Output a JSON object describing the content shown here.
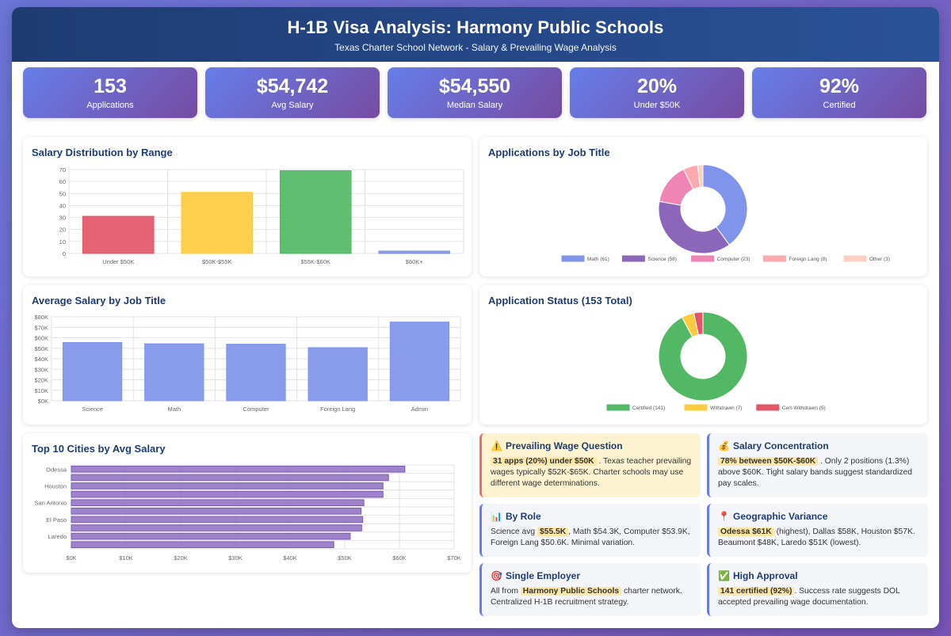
{
  "header": {
    "title": "H-1B Visa Analysis: Harmony Public Schools",
    "subtitle": "Texas Charter School Network - Salary & Prevailing Wage Analysis"
  },
  "stats": [
    {
      "value": "153",
      "label": "Applications"
    },
    {
      "value": "$54,742",
      "label": "Avg Salary"
    },
    {
      "value": "$54,550",
      "label": "Median Salary"
    },
    {
      "value": "20%",
      "label": "Under $50K"
    },
    {
      "value": "92%",
      "label": "Certified"
    }
  ],
  "colors": {
    "header_from": "#1e3c72",
    "header_to": "#2a5298",
    "stat_from": "#667eea",
    "stat_to": "#764ba2",
    "bar_blue": "#7f94ea",
    "bar_purple": "#9374c4"
  },
  "chart_data": [
    {
      "id": "salary_distribution",
      "type": "bar",
      "title": "Salary Distribution by Range",
      "categories": [
        "Under $50K",
        "$50K-$55K",
        "$55K-$60K",
        "$60K+"
      ],
      "values": [
        31,
        51,
        69,
        2
      ],
      "colors": [
        "#e25668",
        "#fecb3d",
        "#52b865",
        "#7f94ea"
      ],
      "ylim": [
        0,
        70
      ],
      "yticks": [
        "0",
        "10",
        "20",
        "30",
        "40",
        "50",
        "60",
        "70"
      ],
      "grid": true
    },
    {
      "id": "applications_by_job",
      "type": "pie",
      "title": "Applications by Job Title",
      "labels": [
        "Math (61)",
        "Science (58)",
        "Computer (23)",
        "Foreign Lang (8)",
        "Other (3)"
      ],
      "values": [
        61,
        58,
        23,
        8,
        3
      ],
      "colors": [
        "#7f94ea",
        "#8c66b9",
        "#ef85b4",
        "#fcaab0",
        "#fdd0c2"
      ],
      "legend": "bottom"
    },
    {
      "id": "avg_salary_by_job",
      "type": "bar",
      "title": "Average Salary by Job Title",
      "categories": [
        "Science",
        "Math",
        "Computer",
        "Foreign Lang",
        "Admin"
      ],
      "values": [
        55500,
        54300,
        53900,
        50600,
        75000
      ],
      "colors": [
        "#7f94ea",
        "#7f94ea",
        "#7f94ea",
        "#7f94ea",
        "#7f94ea"
      ],
      "ylim": [
        0,
        80000
      ],
      "yticks": [
        "$0K",
        "$10K",
        "$20K",
        "$30K",
        "$40K",
        "$50K",
        "$60K",
        "$70K",
        "$80K"
      ],
      "grid": true
    },
    {
      "id": "application_status",
      "type": "pie",
      "title": "Application Status (153 Total)",
      "labels": [
        "Certified (141)",
        "Withdrawn (7)",
        "Cert-Withdrawn (5)"
      ],
      "values": [
        141,
        7,
        5
      ],
      "colors": [
        "#52b865",
        "#fecb3d",
        "#e25668"
      ],
      "legend": "bottom"
    },
    {
      "id": "top_cities",
      "type": "bar",
      "orientation": "horizontal",
      "title": "Top 10 Cities by Avg Salary",
      "category_labels": [
        "Odessa",
        "",
        "Houston",
        "",
        "San Antonio",
        "",
        "El Paso",
        "",
        "Laredo",
        ""
      ],
      "values": [
        61000,
        58000,
        57000,
        57000,
        53500,
        53000,
        53300,
        53100,
        51000,
        48000
      ],
      "color": "#9374c4",
      "xlim": [
        0,
        70000
      ],
      "xticks": [
        "$0K",
        "$10K",
        "$20K",
        "$30K",
        "$40K",
        "$50K",
        "$60K",
        "$70K"
      ],
      "grid": true
    }
  ],
  "insights": [
    {
      "icon": "⚠️",
      "title": "Prevailing Wage Question",
      "highlight": "31 apps (20%) under $50K",
      "text_before": "",
      "text_after": ". Texas teacher prevailing wages typically $52K-$65K. Charter schools may use different wage determinations."
    },
    {
      "icon": "💰",
      "title": "Salary Concentration",
      "highlight": "78% between $50K-$60K",
      "text_before": "",
      "text_after": ". Only 2 positions (1.3%) above $60K. Tight salary bands suggest standardized pay scales."
    },
    {
      "icon": "📊",
      "title": "By Role",
      "highlight": "$55.5K",
      "text_before": "Science avg",
      "text_after": ", Math $54.3K, Computer $53.9K, Foreign Lang $50.6K. Minimal variation."
    },
    {
      "icon": "📍",
      "title": "Geographic Variance",
      "highlight": "Odessa $61K",
      "text_before": "",
      "text_after": "(highest), Dallas $58K, Houston $57K. Beaumont $48K, Laredo $51K (lowest)."
    },
    {
      "icon": "🎯",
      "title": "Single Employer",
      "highlight": "Harmony Public Schools",
      "text_before": "All from",
      "text_after": "charter network. Centralized H-1B recruitment strategy."
    },
    {
      "icon": "✅",
      "title": "High Approval",
      "highlight": "141 certified (92%)",
      "text_before": "",
      "text_after": ". Success rate suggests DOL accepted prevailing wage documentation."
    }
  ]
}
